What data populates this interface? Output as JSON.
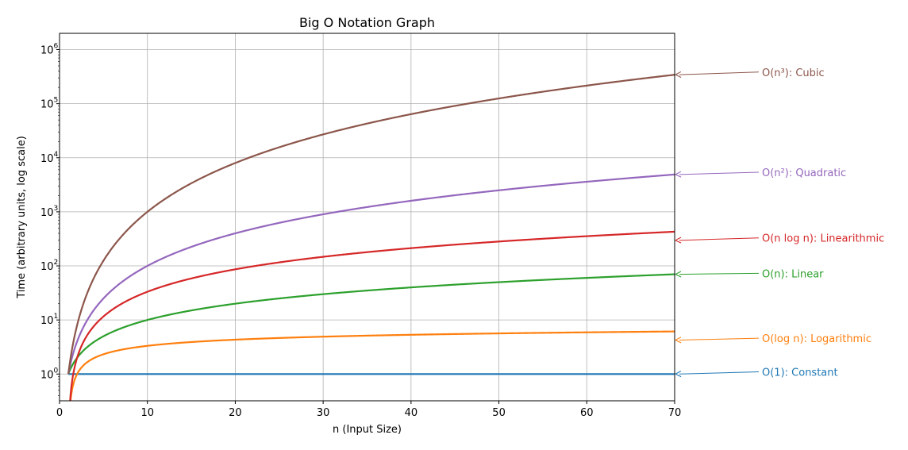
{
  "chart_data": {
    "type": "line",
    "title": "Big O Notation Graph",
    "xlabel": "n (Input Size)",
    "ylabel": "Time (arbitrary units, log scale)",
    "yscale": "log",
    "xlim": [
      0,
      70
    ],
    "ylim": [
      0.32,
      2000000
    ],
    "grid": true,
    "x_ticks": [
      0,
      10,
      20,
      30,
      40,
      50,
      60,
      70
    ],
    "y_ticks": [
      {
        "value": 1,
        "base": "10",
        "exp": "0"
      },
      {
        "value": 10,
        "base": "10",
        "exp": "1"
      },
      {
        "value": 100,
        "base": "10",
        "exp": "2"
      },
      {
        "value": 1000,
        "base": "10",
        "exp": "3"
      },
      {
        "value": 10000,
        "base": "10",
        "exp": "4"
      },
      {
        "value": 100000,
        "base": "10",
        "exp": "5"
      },
      {
        "value": 1000000,
        "base": "10",
        "exp": "6"
      }
    ],
    "n_range": [
      1,
      70
    ],
    "series": [
      {
        "name": "O(1): Constant",
        "fn": "constant",
        "color": "#1f77b4",
        "end_value": 1
      },
      {
        "name": "O(log n): Logarithmic",
        "fn": "log",
        "color": "#ff7f0e",
        "end_value": 4.25
      },
      {
        "name": "O(n): Linear",
        "fn": "linear",
        "color": "#2ca02c",
        "end_value": 70
      },
      {
        "name": "O(n log n): Linearithmic",
        "fn": "nlogn",
        "color": "#d62728",
        "end_value": 297
      },
      {
        "name": "O(n²): Quadratic",
        "fn": "quadratic",
        "color": "#9467bd",
        "end_value": 4900
      },
      {
        "name": "O(n³): Cubic",
        "fn": "cubic",
        "color": "#8c564b",
        "end_value": 343000
      }
    ],
    "annotation_label_y": {
      "O(1): Constant": 1.1,
      "O(log n): Logarithmic": 4.6,
      "O(n): Linear": 73,
      "O(n log n): Linearithmic": 330,
      "O(n²): Quadratic": 5400,
      "O(n³): Cubic": 385000
    }
  }
}
